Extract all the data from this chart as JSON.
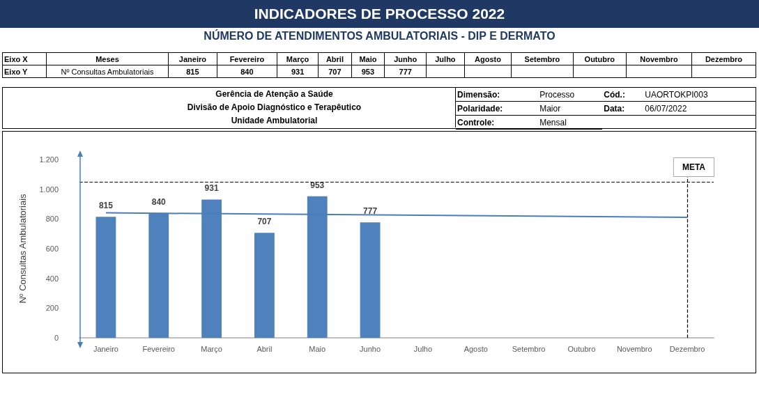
{
  "chart_data": {
    "type": "bar",
    "title": "INDICADORES DE PROCESSO 2022",
    "subtitle": "NÚMERO DE ATENDIMENTOS AMBULATORIAIS - DIP E DERMATO",
    "ylabel": "Nº Consultas Ambulatoriais",
    "categories": [
      "Janeiro",
      "Fevereiro",
      "Março",
      "Abril",
      "Maio",
      "Junho",
      "Julho",
      "Agosto",
      "Setembro",
      "Outubro",
      "Novembro",
      "Dezembro"
    ],
    "series": [
      {
        "color": "#4f81bd",
        "values": [
          815,
          840,
          931,
          707,
          953,
          777,
          null,
          null,
          null,
          null,
          null,
          null
        ],
        "value_labels": [
          "815",
          "840",
          "931",
          "707",
          "953",
          "777",
          null,
          null,
          null,
          null,
          null,
          null
        ]
      },
      {
        "type": "line",
        "color": "#4a7ebb",
        "x": [
          "Janeiro",
          "Dezembro"
        ],
        "values": [
          841,
          811
        ]
      }
    ],
    "ylim": [
      0,
      1200
    ],
    "yticks": [
      0,
      200,
      400,
      600,
      800,
      {
        "value": 1000,
        "label": "1.000"
      },
      {
        "value": 1200,
        "label": "1.200"
      }
    ],
    "ref_lines": [
      {
        "axis": "y",
        "value": 1050,
        "label": "META",
        "color": "#000000",
        "line_style": "dashed"
      },
      {
        "axis": "x",
        "value": "Dezembro",
        "label": null,
        "color": "#000000",
        "line_style": "dashed"
      }
    ],
    "annotations": [
      "Eixo X",
      "Meses",
      "Eixo Y",
      "Nº Consultas Ambulatoriais",
      "Gerência de Atenção a Saúde",
      "Divisão de Apoio Diagnóstico e Terapêutico",
      "Unidade Ambulatorial",
      "Dimensão:",
      "Processo",
      "Cód.:",
      "UAORTOKPI003",
      "Polaridade:",
      "Maior",
      "Data:",
      "06/07/2022",
      "Controle:",
      "Mensal",
      "815",
      "840",
      "931",
      "707",
      "953",
      "777"
    ],
    "grid": false,
    "marker": "none",
    "line_style": "solid"
  }
}
